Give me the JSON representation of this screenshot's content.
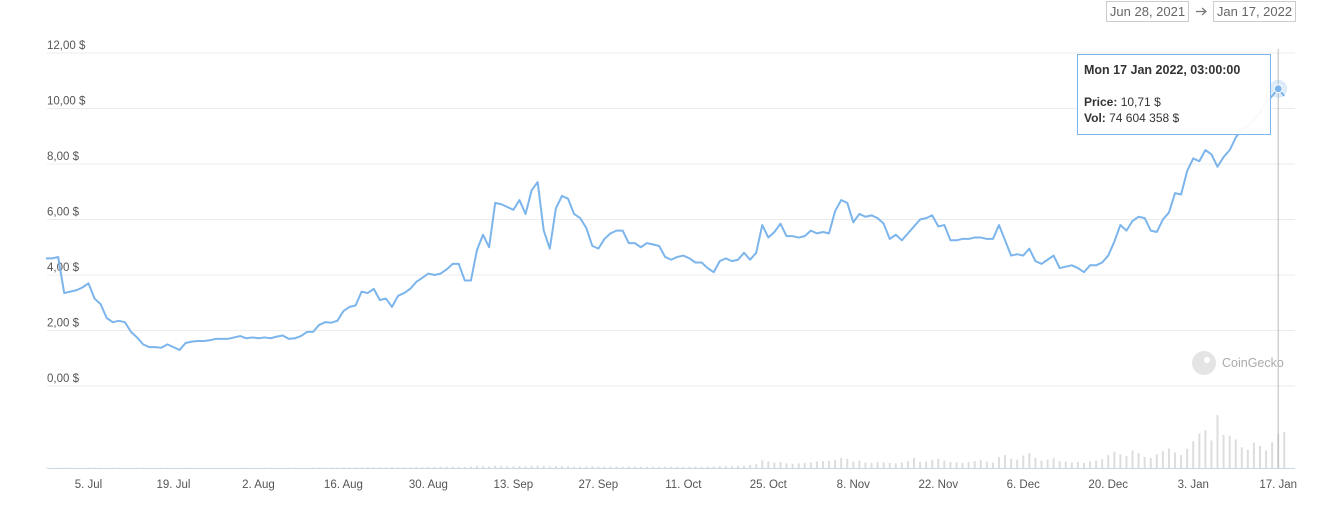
{
  "date_range": {
    "start": "Jun 28, 2021",
    "end": "Jan 17, 2022"
  },
  "watermark": "CoinGecko",
  "tooltip": {
    "title": "Mon 17 Jan 2022, 03:00:00",
    "price_label": "Price:",
    "price": "10,71 $",
    "vol_label": "Vol:",
    "vol": "74 604 358 $"
  },
  "chart_data": {
    "type": "line",
    "categories": [
      null,
      null,
      null,
      null,
      null,
      null,
      null,
      "5. Jul",
      null,
      null,
      null,
      null,
      null,
      null,
      null,
      null,
      null,
      null,
      null,
      null,
      null,
      "19. Jul",
      null,
      null,
      null,
      null,
      null,
      null,
      null,
      null,
      null,
      null,
      null,
      null,
      null,
      "2. Aug",
      null,
      null,
      null,
      null,
      null,
      null,
      null,
      null,
      null,
      null,
      null,
      null,
      null,
      "16. Aug",
      null,
      null,
      null,
      null,
      null,
      null,
      null,
      null,
      null,
      null,
      null,
      null,
      null,
      "30. Aug",
      null,
      null,
      null,
      null,
      null,
      null,
      null,
      null,
      null,
      null,
      null,
      null,
      null,
      "13. Sep",
      null,
      null,
      null,
      null,
      null,
      null,
      null,
      null,
      null,
      null,
      null,
      null,
      null,
      "27. Sep",
      null,
      null,
      null,
      null,
      null,
      null,
      null,
      null,
      null,
      null,
      null,
      null,
      null,
      "11. Oct",
      null,
      null,
      null,
      null,
      null,
      null,
      null,
      null,
      null,
      null,
      null,
      null,
      null,
      "25. Oct",
      null,
      null,
      null,
      null,
      null,
      null,
      null,
      null,
      null,
      null,
      null,
      null,
      null,
      "8. Nov",
      null,
      null,
      null,
      null,
      null,
      null,
      null,
      null,
      null,
      null,
      null,
      null,
      null,
      "22. Nov",
      null,
      null,
      null,
      null,
      null,
      null,
      null,
      null,
      null,
      null,
      null,
      null,
      null,
      "6. Dec",
      null,
      null,
      null,
      null,
      null,
      null,
      null,
      null,
      null,
      null,
      null,
      null,
      null,
      "20. Dec",
      null,
      null,
      null,
      null,
      null,
      null,
      null,
      null,
      null,
      null,
      null,
      null,
      null,
      "3. Jan",
      null,
      null,
      null,
      null,
      null,
      null,
      null,
      null,
      null,
      null,
      null,
      null,
      null,
      "17. Jan",
      null
    ],
    "series": [
      {
        "color": "#7cb5ec",
        "values": [
          4.6,
          4.6,
          4.65,
          3.35,
          3.4,
          3.45,
          3.55,
          3.7,
          3.15,
          2.95,
          2.45,
          2.3,
          2.35,
          2.3,
          1.95,
          1.75,
          1.5,
          1.4,
          1.4,
          1.38,
          1.5,
          1.4,
          1.3,
          1.55,
          1.6,
          1.62,
          1.62,
          1.65,
          1.7,
          1.7,
          1.7,
          1.75,
          1.8,
          1.72,
          1.75,
          1.72,
          1.75,
          1.72,
          1.78,
          1.82,
          1.7,
          1.72,
          1.8,
          1.95,
          1.95,
          2.2,
          2.3,
          2.28,
          2.35,
          2.7,
          2.85,
          2.9,
          3.4,
          3.35,
          3.5,
          3.1,
          3.15,
          2.85,
          3.25,
          3.35,
          3.5,
          3.75,
          3.9,
          4.05,
          4.0,
          4.05,
          4.2,
          4.4,
          4.4,
          3.8,
          3.8,
          4.9,
          5.45,
          5.0,
          6.6,
          6.55,
          6.45,
          6.35,
          6.7,
          6.2,
          7.05,
          7.35,
          5.6,
          4.95,
          6.4,
          6.85,
          6.75,
          6.2,
          6.05,
          5.7,
          5.05,
          4.95,
          5.3,
          5.5,
          5.6,
          5.6,
          5.15,
          5.15,
          5.0,
          5.15,
          5.1,
          5.05,
          4.65,
          4.55,
          4.65,
          4.7,
          4.6,
          4.45,
          4.45,
          4.25,
          4.1,
          4.5,
          4.6,
          4.5,
          4.55,
          4.8,
          4.55,
          4.8,
          5.8,
          5.35,
          5.55,
          5.85,
          5.4,
          5.4,
          5.35,
          5.4,
          5.6,
          5.5,
          5.55,
          5.5,
          6.3,
          6.7,
          6.6,
          5.9,
          6.2,
          6.1,
          6.15,
          6.05,
          5.85,
          5.3,
          5.45,
          5.25,
          5.5,
          5.75,
          6.0,
          6.05,
          6.15,
          5.75,
          5.8,
          5.25,
          5.25,
          5.3,
          5.3,
          5.35,
          5.35,
          5.3,
          5.3,
          5.8,
          5.25,
          4.7,
          4.75,
          4.7,
          4.95,
          4.5,
          4.4,
          4.55,
          4.7,
          4.25,
          4.3,
          4.35,
          4.25,
          4.1,
          4.35,
          4.35,
          4.45,
          4.7,
          5.2,
          5.8,
          5.6,
          5.95,
          6.1,
          6.05,
          5.6,
          5.55,
          6.0,
          6.25,
          6.95,
          6.9,
          7.75,
          8.2,
          8.1,
          8.5,
          8.35,
          7.9,
          8.25,
          8.5,
          8.95,
          9.25,
          9.35,
          9.6,
          9.85,
          10.2,
          10.45,
          10.71,
          10.45
        ]
      },
      {
        "color": "#dddddd",
        "axis": "y2",
        "values": [
          500000,
          450000,
          600000,
          550000,
          500000,
          480000,
          520000,
          600000,
          700000,
          650000,
          550000,
          500000,
          480000,
          450000,
          520000,
          500000,
          470000,
          460000,
          500000,
          480000,
          450000,
          470000,
          500000,
          520000,
          480000,
          460000,
          450000,
          470000,
          500000,
          490000,
          460000,
          480000,
          500000,
          470000,
          450000,
          460000,
          480000,
          500000,
          470000,
          490000,
          500000,
          520000,
          550000,
          600000,
          650000,
          700000,
          800000,
          900000,
          850000,
          950000,
          1200000,
          1100000,
          1500000,
          1400000,
          1300000,
          1600000,
          1200000,
          1400000,
          1300000,
          1500000,
          1600000,
          1800000,
          2000000,
          2500000,
          2200000,
          2400000,
          2800000,
          3000000,
          2600000,
          2400000,
          3200000,
          4500000,
          3800000,
          3200000,
          5000000,
          4200000,
          3800000,
          3600000,
          4500000,
          3500000,
          4800000,
          5200000,
          4600000,
          3800000,
          4200000,
          4400000,
          3600000,
          3200000,
          3000000,
          3400000,
          3800000,
          3200000,
          3000000,
          3100000,
          2900000,
          2800000,
          3300000,
          3000000,
          2700000,
          2900000,
          2800000,
          2600000,
          3000000,
          2800000,
          2700000,
          2500000,
          2900000,
          3000000,
          2600000,
          3200000,
          3500000,
          4200000,
          4000000,
          3800000,
          4500000,
          5000000,
          6500000,
          8000000,
          17000000,
          14000000,
          12000000,
          13000000,
          10000000,
          9000000,
          10000000,
          11000000,
          12000000,
          14000000,
          15000000,
          16000000,
          18000000,
          22000000,
          20000000,
          14000000,
          16000000,
          12000000,
          11000000,
          13000000,
          12000000,
          11000000,
          10000000,
          12000000,
          15000000,
          22000000,
          13000000,
          14000000,
          18000000,
          20000000,
          16000000,
          13000000,
          12000000,
          11000000,
          13000000,
          15000000,
          17000000,
          14000000,
          12000000,
          24000000,
          28000000,
          20000000,
          18000000,
          27000000,
          32000000,
          22000000,
          16000000,
          18000000,
          21000000,
          15000000,
          14000000,
          12000000,
          13000000,
          11000000,
          14000000,
          16000000,
          19000000,
          28000000,
          35000000,
          30000000,
          26000000,
          38000000,
          32000000,
          24000000,
          22000000,
          30000000,
          36000000,
          42000000,
          34000000,
          28000000,
          42000000,
          58000000,
          75000000,
          82000000,
          60000000,
          115000000,
          72000000,
          70000000,
          62000000,
          45000000,
          40000000,
          55000000,
          48000000,
          38000000,
          56000000,
          74604358,
          78000000
        ]
      }
    ],
    "ylim": [
      0,
      12
    ],
    "yticks": [
      {
        "value": 0,
        "label": "0,00 $"
      },
      {
        "value": 2,
        "label": "2,00 $"
      },
      {
        "value": 4,
        "label": "4,00 $"
      },
      {
        "value": 6,
        "label": "6,00 $"
      },
      {
        "value": 8,
        "label": "8,00 $"
      },
      {
        "value": 10,
        "label": "10,00 $"
      },
      {
        "value": 12,
        "label": "12,00 $"
      }
    ],
    "y2lim": [
      0,
      300000000
    ],
    "grid": true
  }
}
